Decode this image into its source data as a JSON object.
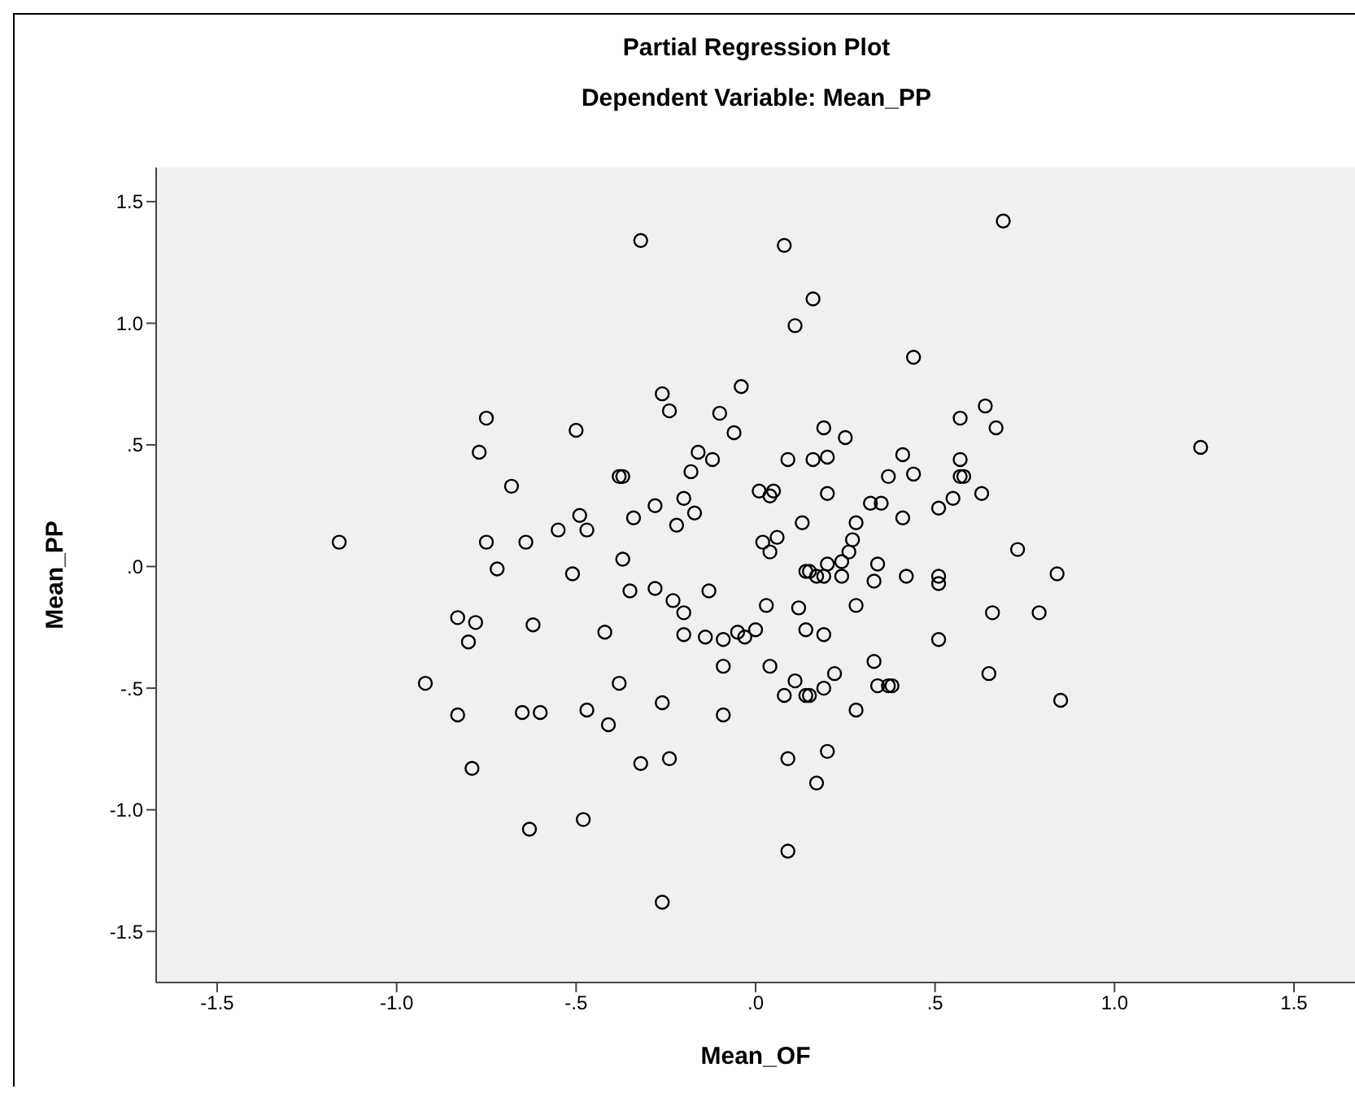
{
  "chart_data": {
    "type": "scatter",
    "title": "Partial Regression Plot",
    "subtitle": "Dependent Variable: Mean_PP",
    "xlabel": "Mean_OF",
    "ylabel": "Mean_PP",
    "xlim": [
      -1.67,
      1.67
    ],
    "ylim": [
      -1.71,
      1.64
    ],
    "xticks": [
      {
        "value": -1.5,
        "label": "-1.5"
      },
      {
        "value": -1,
        "label": "-1.0"
      },
      {
        "value": -0.5,
        "label": "-.5"
      },
      {
        "value": 0,
        "label": ".0"
      },
      {
        "value": 0.5,
        "label": ".5"
      },
      {
        "value": 1,
        "label": "1.0"
      },
      {
        "value": 1.5,
        "label": "1.5"
      }
    ],
    "yticks": [
      {
        "value": -1.5,
        "label": "-1.5"
      },
      {
        "value": -1,
        "label": "-1.0"
      },
      {
        "value": -0.5,
        "label": "-.5"
      },
      {
        "value": 0,
        "label": ".0"
      },
      {
        "value": 0.5,
        "label": ".5"
      },
      {
        "value": 1,
        "label": "1.0"
      },
      {
        "value": 1.5,
        "label": "1.5"
      }
    ],
    "marker": "circle",
    "series": [
      {
        "color": "#000000",
        "x": [
          -0.75,
          -0.77,
          -0.68,
          -1.16,
          -0.75,
          -0.64,
          -0.55,
          -0.72,
          -0.83,
          -0.78,
          -0.62,
          -0.8,
          -0.92,
          -0.83,
          -0.65,
          -0.6,
          -0.79,
          -0.63,
          -0.32,
          0.08,
          0.16,
          0.11,
          0.44,
          -0.26,
          -0.04,
          -0.24,
          -0.1,
          -0.06,
          -0.5,
          0.19,
          0.25,
          0.57,
          -0.16,
          -0.12,
          -0.18,
          0.09,
          0.16,
          0.2,
          0.41,
          0.37,
          0.44,
          0.57,
          0.57,
          0.58,
          -0.38,
          -0.37,
          -0.49,
          -0.47,
          -0.34,
          -0.28,
          -0.2,
          -0.17,
          -0.22,
          0.01,
          0.05,
          0.04,
          0.2,
          0.32,
          0.35,
          0.41,
          0.51,
          0.55,
          0.13,
          0.02,
          0.06,
          0.04,
          0.28,
          0.27,
          0.26,
          0.24,
          0.34,
          -0.37,
          -0.51,
          0.14,
          0.15,
          0.2,
          0.42,
          0.51,
          0.51,
          0.69,
          0.64,
          0.67,
          1.24,
          0.63,
          0.73,
          0.84,
          0.66,
          0.79,
          0.65,
          0.85,
          -0.35,
          -0.28,
          -0.23,
          -0.2,
          -0.13,
          -0.42,
          -0.2,
          -0.14,
          -0.09,
          -0.05,
          -0.03,
          0.0,
          0.03,
          0.12,
          0.14,
          0.19,
          0.28,
          0.17,
          0.19,
          0.24,
          0.33,
          0.51,
          0.33,
          0.22,
          0.19,
          0.11,
          0.08,
          0.14,
          0.15,
          0.28,
          0.34,
          0.37,
          0.38,
          -0.09,
          0.04,
          -0.09,
          -0.38,
          -0.26,
          -0.47,
          -0.41,
          -0.32,
          -0.24,
          0.09,
          0.2,
          0.17,
          -0.48,
          0.09,
          -0.26
        ],
        "values": [
          0.61,
          0.47,
          0.33,
          0.1,
          0.1,
          0.1,
          0.15,
          -0.01,
          -0.21,
          -0.23,
          -0.24,
          -0.31,
          -0.48,
          -0.61,
          -0.6,
          -0.6,
          -0.83,
          -1.08,
          1.34,
          1.32,
          1.1,
          0.99,
          0.86,
          0.71,
          0.74,
          0.64,
          0.63,
          0.55,
          0.56,
          0.57,
          0.53,
          0.61,
          0.47,
          0.44,
          0.39,
          0.44,
          0.44,
          0.45,
          0.46,
          0.37,
          0.38,
          0.44,
          0.37,
          0.37,
          0.37,
          0.37,
          0.21,
          0.15,
          0.2,
          0.25,
          0.28,
          0.22,
          0.17,
          0.31,
          0.31,
          0.29,
          0.3,
          0.26,
          0.26,
          0.2,
          0.24,
          0.28,
          0.18,
          0.1,
          0.12,
          0.06,
          0.18,
          0.11,
          0.06,
          0.02,
          0.01,
          0.03,
          -0.03,
          -0.02,
          -0.02,
          0.01,
          -0.04,
          -0.04,
          -0.07,
          1.42,
          0.66,
          0.57,
          0.49,
          0.3,
          0.07,
          -0.03,
          -0.19,
          -0.19,
          -0.44,
          -0.55,
          -0.1,
          -0.09,
          -0.14,
          -0.19,
          -0.1,
          -0.27,
          -0.28,
          -0.29,
          -0.3,
          -0.27,
          -0.29,
          -0.26,
          -0.16,
          -0.17,
          -0.26,
          -0.28,
          -0.16,
          -0.04,
          -0.04,
          -0.04,
          -0.06,
          -0.3,
          -0.39,
          -0.44,
          -0.5,
          -0.47,
          -0.53,
          -0.53,
          -0.53,
          -0.59,
          -0.49,
          -0.49,
          -0.49,
          -0.41,
          -0.41,
          -0.61,
          -0.48,
          -0.56,
          -0.59,
          -0.65,
          -0.81,
          -0.79,
          -0.79,
          -0.76,
          -0.89,
          -1.04,
          -1.17,
          -1.38
        ]
      }
    ]
  }
}
